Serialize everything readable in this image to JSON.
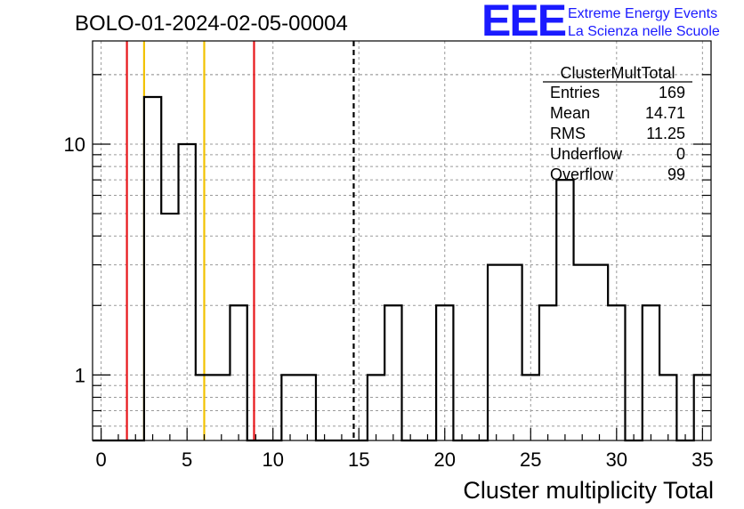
{
  "chart_data": {
    "type": "histogram",
    "title": "BOLO-01-2024-02-05-00004",
    "xlabel": "Cluster multiplicity Total",
    "ylabel": "",
    "xlim": [
      -0.5,
      35.5
    ],
    "ylim": [
      0.52,
      28
    ],
    "yscale": "log",
    "grid": true,
    "bin_width": 1,
    "x_ticks": [
      "0",
      "5",
      "10",
      "15",
      "20",
      "25",
      "30",
      "35"
    ],
    "y_ticks": [
      "1",
      "10"
    ],
    "bins": [
      {
        "x": 0,
        "count": 0
      },
      {
        "x": 1,
        "count": 0
      },
      {
        "x": 2,
        "count": 0
      },
      {
        "x": 3,
        "count": 16
      },
      {
        "x": 4,
        "count": 5
      },
      {
        "x": 5,
        "count": 10
      },
      {
        "x": 6,
        "count": 1
      },
      {
        "x": 7,
        "count": 1
      },
      {
        "x": 8,
        "count": 2
      },
      {
        "x": 9,
        "count": 0
      },
      {
        "x": 10,
        "count": 0
      },
      {
        "x": 11,
        "count": 1
      },
      {
        "x": 12,
        "count": 1
      },
      {
        "x": 13,
        "count": 0
      },
      {
        "x": 14,
        "count": 0
      },
      {
        "x": 15,
        "count": 0
      },
      {
        "x": 16,
        "count": 1
      },
      {
        "x": 17,
        "count": 2
      },
      {
        "x": 18,
        "count": 0
      },
      {
        "x": 19,
        "count": 0
      },
      {
        "x": 20,
        "count": 2
      },
      {
        "x": 21,
        "count": 0
      },
      {
        "x": 22,
        "count": 0
      },
      {
        "x": 23,
        "count": 3
      },
      {
        "x": 24,
        "count": 3
      },
      {
        "x": 25,
        "count": 1
      },
      {
        "x": 26,
        "count": 2
      },
      {
        "x": 27,
        "count": 7
      },
      {
        "x": 28,
        "count": 3
      },
      {
        "x": 29,
        "count": 3
      },
      {
        "x": 30,
        "count": 2
      },
      {
        "x": 31,
        "count": 0
      },
      {
        "x": 32,
        "count": 2
      },
      {
        "x": 33,
        "count": 1
      },
      {
        "x": 34,
        "count": 0
      },
      {
        "x": 35,
        "count": 1
      }
    ],
    "vertical_lines": [
      {
        "x": 1.5,
        "color": "#e8161b",
        "style": "solid"
      },
      {
        "x": 2.5,
        "color": "#f2c200",
        "style": "solid"
      },
      {
        "x": 6.0,
        "color": "#f2c200",
        "style": "solid"
      },
      {
        "x": 8.9,
        "color": "#e8161b",
        "style": "solid"
      },
      {
        "x": 14.7,
        "color": "#000000",
        "style": "dashed"
      }
    ],
    "stats_box": {
      "title": "ClusterMultTotal",
      "rows": [
        {
          "label": "Entries",
          "value": "169"
        },
        {
          "label": "Mean",
          "value": "14.71"
        },
        {
          "label": "RMS",
          "value": "11.25"
        },
        {
          "label": "Underflow",
          "value": "0"
        },
        {
          "label": "Overflow",
          "value": "99"
        }
      ]
    },
    "logo": {
      "letters": "EEE",
      "line1": "Extreme Energy Events",
      "line2": "La Scienza nelle Scuole"
    }
  }
}
